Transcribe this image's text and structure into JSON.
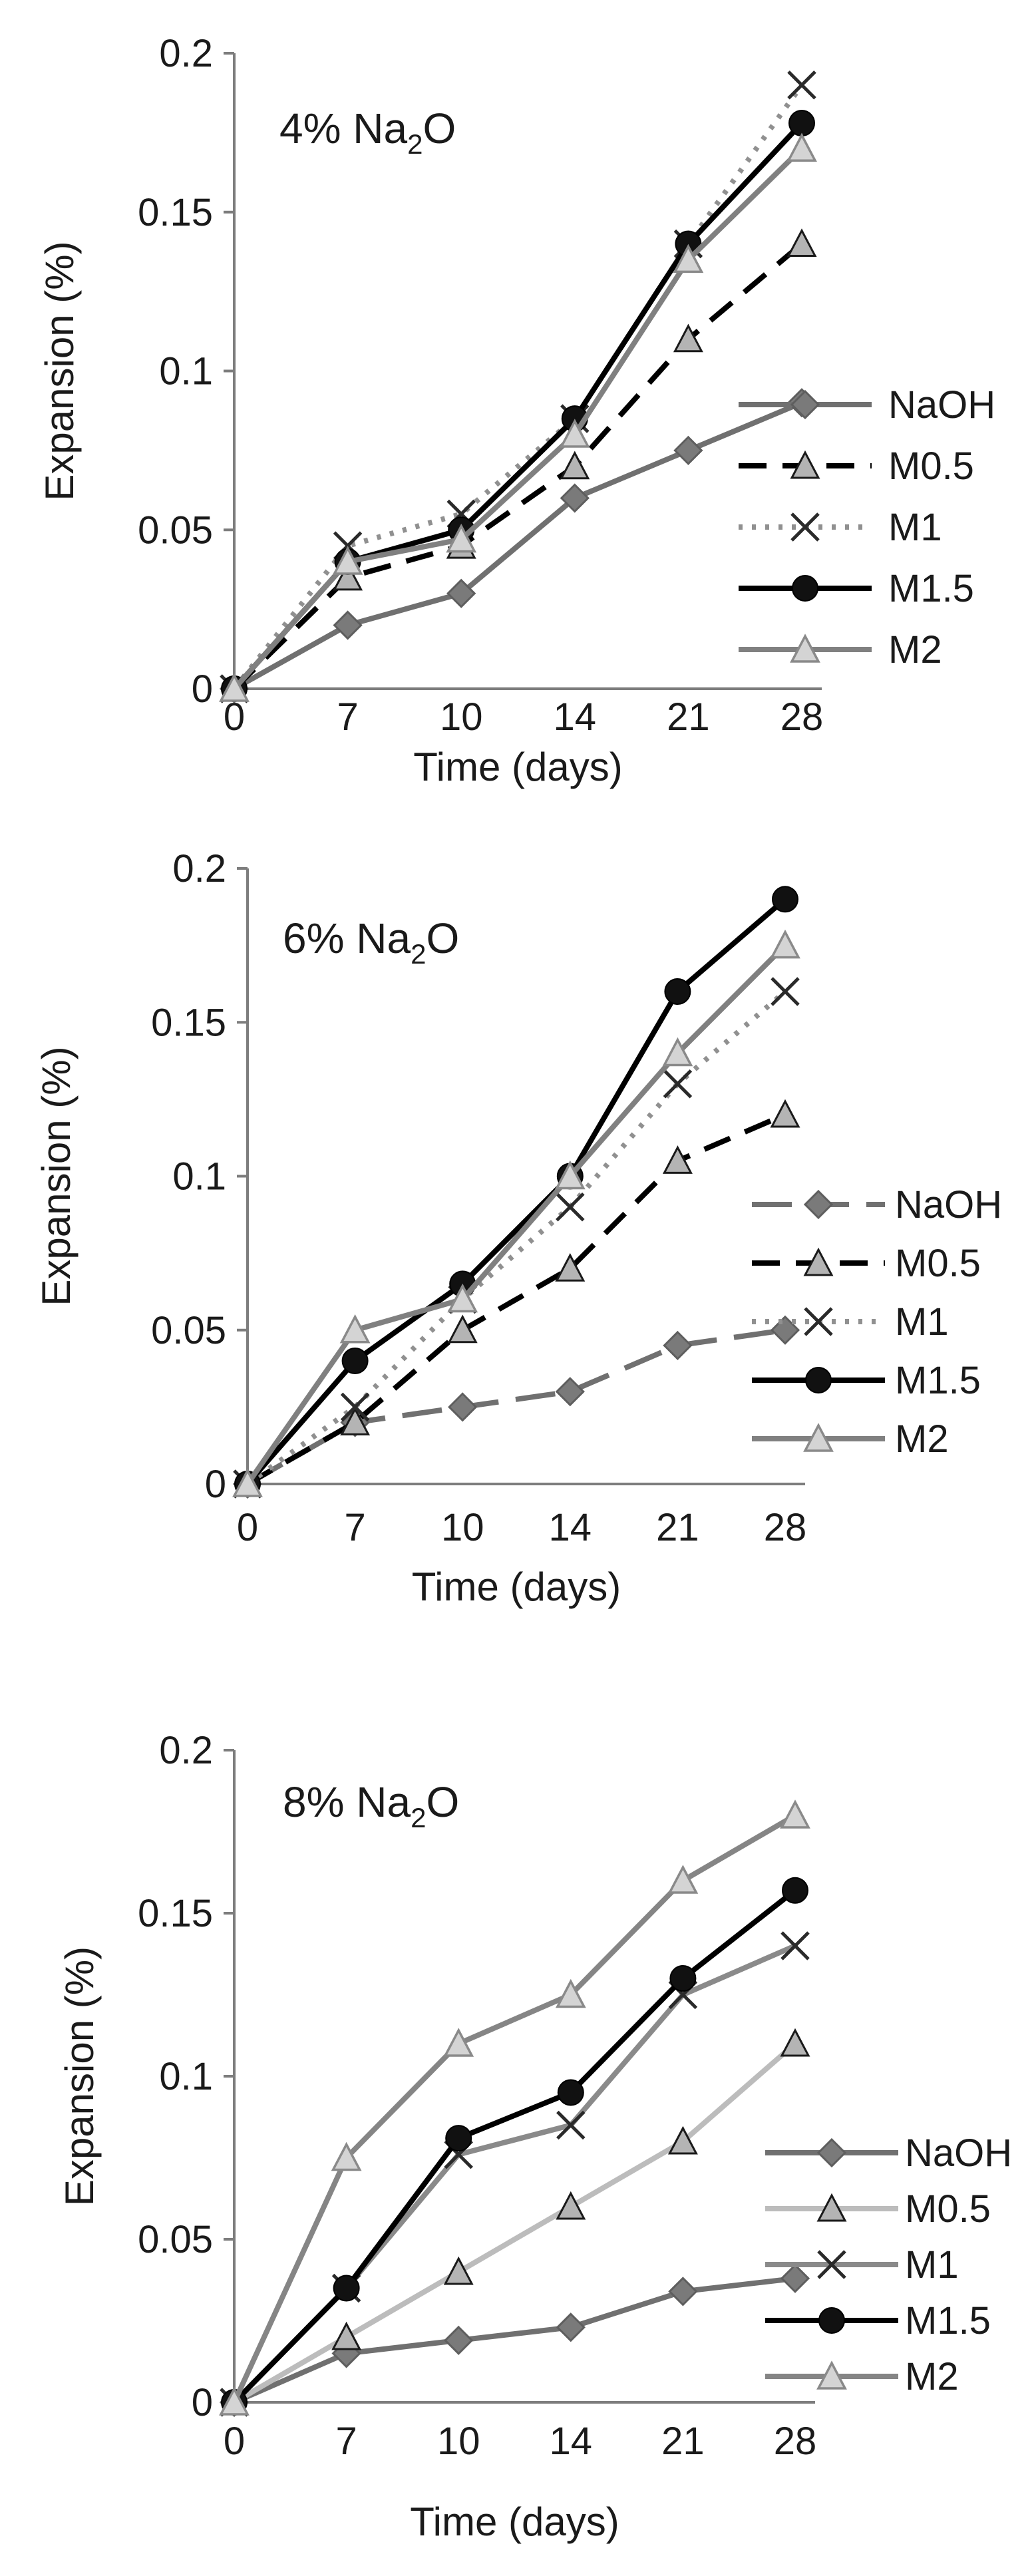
{
  "chart_data": [
    {
      "type": "line",
      "title": "4% Na2O",
      "title_main": "4% Na",
      "title_sub": "2",
      "title_tail": "O",
      "xlabel": "Time (days)",
      "ylabel": "Expansion (%)",
      "categories": [
        "0",
        "7",
        "10",
        "14",
        "21",
        "28"
      ],
      "yticks": [
        "0",
        "0.05",
        "0.1",
        "0.15",
        "0.2"
      ],
      "ylim": [
        0,
        0.2
      ],
      "legend_position": "right",
      "series": [
        {
          "name": "NaOH",
          "values": [
            0,
            0.02,
            0.03,
            0.06,
            0.075,
            0.09
          ],
          "color": "#707070",
          "marker": "diamond",
          "dash": "solid"
        },
        {
          "name": "M0.5",
          "values": [
            0,
            0.035,
            0.045,
            0.07,
            0.11,
            0.14
          ],
          "color": "#000000",
          "marker": "triangle",
          "dash": "dashed"
        },
        {
          "name": "M1",
          "values": [
            0,
            0.045,
            0.055,
            0.085,
            0.14,
            0.19
          ],
          "color": "#909090",
          "marker": "x",
          "dash": "dotted"
        },
        {
          "name": "M1.5",
          "values": [
            0,
            0.04,
            0.05,
            0.085,
            0.14,
            0.178
          ],
          "color": "#000000",
          "marker": "circle",
          "dash": "solid"
        },
        {
          "name": "M2",
          "values": [
            0,
            0.04,
            0.047,
            0.08,
            0.135,
            0.17
          ],
          "color": "#808080",
          "marker": "triangle-open",
          "dash": "solid"
        }
      ]
    },
    {
      "type": "line",
      "title": "6% Na2O",
      "title_main": "6% Na",
      "title_sub": "2",
      "title_tail": "O",
      "xlabel": "Time (days)",
      "ylabel": "Expansion (%)",
      "categories": [
        "0",
        "7",
        "10",
        "14",
        "21",
        "28"
      ],
      "yticks": [
        "0",
        "0.05",
        "0.1",
        "0.15",
        "0.2"
      ],
      "ylim": [
        0,
        0.2
      ],
      "legend_position": "right",
      "series": [
        {
          "name": "NaOH",
          "values": [
            0,
            0.02,
            0.025,
            0.03,
            0.045,
            0.05
          ],
          "color": "#707070",
          "marker": "diamond",
          "dash": "longdash"
        },
        {
          "name": "M0.5",
          "values": [
            0,
            0.02,
            0.05,
            0.07,
            0.105,
            0.12
          ],
          "color": "#000000",
          "marker": "triangle",
          "dash": "dashed"
        },
        {
          "name": "M1",
          "values": [
            0,
            0.025,
            0.06,
            0.09,
            0.13,
            0.16
          ],
          "color": "#909090",
          "marker": "x",
          "dash": "dotted"
        },
        {
          "name": "M1.5",
          "values": [
            0,
            0.04,
            0.065,
            0.1,
            0.16,
            0.19
          ],
          "color": "#000000",
          "marker": "circle",
          "dash": "solid"
        },
        {
          "name": "M2",
          "values": [
            0,
            0.05,
            0.06,
            0.1,
            0.14,
            0.175
          ],
          "color": "#808080",
          "marker": "triangle-open",
          "dash": "solid"
        }
      ]
    },
    {
      "type": "line",
      "title": "8% Na2O",
      "title_main": "8% Na",
      "title_sub": "2",
      "title_tail": "O",
      "xlabel": "Time (days)",
      "ylabel": "Expansion (%)",
      "categories": [
        "0",
        "7",
        "10",
        "14",
        "21",
        "28"
      ],
      "yticks": [
        "0",
        "0.05",
        "0.1",
        "0.15",
        "0.2"
      ],
      "ylim": [
        0,
        0.2
      ],
      "legend_position": "right",
      "series": [
        {
          "name": "NaOH",
          "values": [
            0,
            0.015,
            0.019,
            0.023,
            0.034,
            0.038
          ],
          "color": "#707070",
          "marker": "diamond",
          "dash": "solid"
        },
        {
          "name": "M0.5",
          "values": [
            0,
            0.02,
            0.04,
            0.06,
            0.08,
            0.11
          ],
          "color": "#bcbcbc",
          "marker": "triangle",
          "dash": "solid"
        },
        {
          "name": "M1",
          "values": [
            0,
            0.035,
            0.076,
            0.085,
            0.125,
            0.14
          ],
          "color": "#8a8a8a",
          "marker": "x",
          "dash": "solid"
        },
        {
          "name": "M1.5",
          "values": [
            0,
            0.035,
            0.081,
            0.095,
            0.13,
            0.157
          ],
          "color": "#000000",
          "marker": "circle",
          "dash": "solid"
        },
        {
          "name": "M2",
          "values": [
            0,
            0.075,
            0.11,
            0.125,
            0.16,
            0.18
          ],
          "color": "#858585",
          "marker": "triangle-open",
          "dash": "solid"
        }
      ]
    }
  ]
}
